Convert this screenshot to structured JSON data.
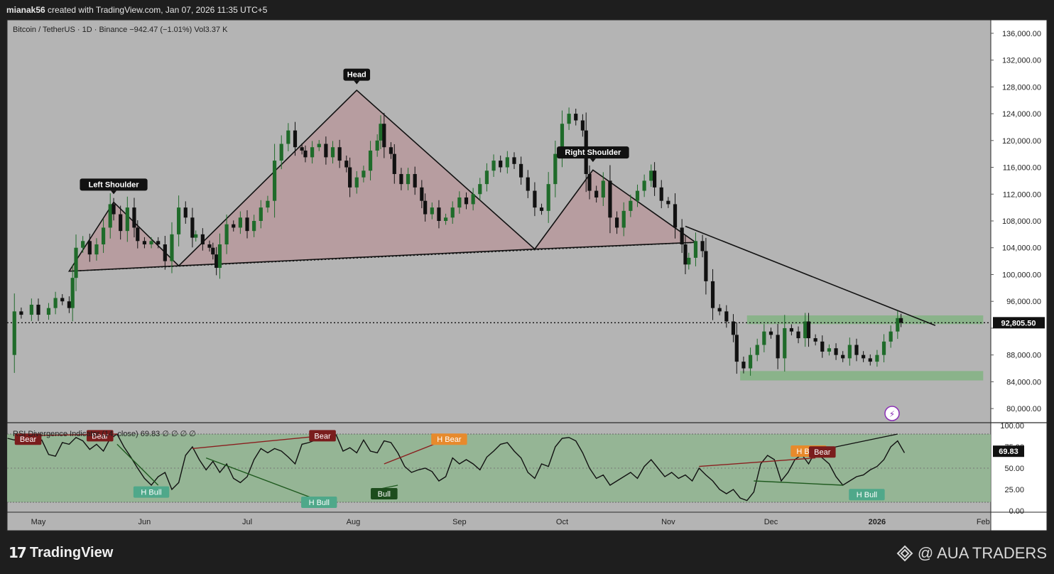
{
  "header": {
    "author": "mianak56",
    "credit": "created with TradingView.com, Jan 07, 2026 11:35 UTC+5"
  },
  "legend": {
    "symbol": "Bitcoin / TetherUS · 1D · Binance",
    "change": "−942.47 (−1.01%)",
    "volume": "Vol3.37 K",
    "rsi_title": "RSI Divergence Indicator (14, close)",
    "rsi_value": "69.83",
    "rsi_extra": "∅ ∅ ∅ ∅"
  },
  "footer": {
    "brand": "TradingView",
    "watermark": "@ AUA TRADERS"
  },
  "chart_data": {
    "type": "candlestick",
    "x_axis": {
      "labels": [
        "May",
        "Jun",
        "Jul",
        "Aug",
        "Sep",
        "Oct",
        "Nov",
        "Dec",
        "2026",
        "Feb"
      ],
      "label_days": [
        0,
        31,
        61,
        92,
        123,
        153,
        184,
        214,
        245,
        276
      ]
    },
    "y_axis": {
      "ticks": [
        80000,
        84000,
        88000,
        92000,
        96000,
        100000,
        104000,
        108000,
        112000,
        116000,
        120000,
        124000,
        128000,
        132000,
        136000
      ],
      "tick_labels": [
        "80,000.00",
        "84,000.00",
        "88,000.00",
        "",
        "96,000.00",
        "100,000.00",
        "104,000.00",
        "108,000.00",
        "112,000.00",
        "116,000.00",
        "120,000.00",
        "124,000.00",
        "128,000.00",
        "132,000.00",
        "136,000.00"
      ],
      "range": [
        78000,
        138000
      ]
    },
    "last_price": 92805.5,
    "last_price_label": "92,805.50",
    "price_path": [
      [
        -9,
        88000
      ],
      [
        -7,
        94500
      ],
      [
        -5,
        94000
      ],
      [
        -2,
        95500
      ],
      [
        0,
        94000
      ],
      [
        3,
        95000
      ],
      [
        5,
        96500
      ],
      [
        7,
        96000
      ],
      [
        9,
        95000
      ],
      [
        10,
        99500
      ],
      [
        11,
        104000
      ],
      [
        13,
        105000
      ],
      [
        15,
        103000
      ],
      [
        17,
        104500
      ],
      [
        19,
        107000
      ],
      [
        21,
        110500
      ],
      [
        22,
        109000
      ],
      [
        24,
        106500
      ],
      [
        26,
        110000
      ],
      [
        28,
        107000
      ],
      [
        29,
        105000
      ],
      [
        31,
        104500
      ],
      [
        33,
        105000
      ],
      [
        35,
        104500
      ],
      [
        37,
        102000
      ],
      [
        39,
        106000
      ],
      [
        41,
        110000
      ],
      [
        43,
        108500
      ],
      [
        45,
        105500
      ],
      [
        46,
        106000
      ],
      [
        48,
        104500
      ],
      [
        50,
        104000
      ],
      [
        51,
        103000
      ],
      [
        52,
        101000
      ],
      [
        53,
        104500
      ],
      [
        55,
        107500
      ],
      [
        57,
        107000
      ],
      [
        59,
        108500
      ],
      [
        61,
        106500
      ],
      [
        63,
        108000
      ],
      [
        65,
        110000
      ],
      [
        67,
        111000
      ],
      [
        69,
        117000
      ],
      [
        71,
        119500
      ],
      [
        73,
        121500
      ],
      [
        75,
        119000
      ],
      [
        77,
        118500
      ],
      [
        78,
        117500
      ],
      [
        80,
        119000
      ],
      [
        82,
        119500
      ],
      [
        84,
        117500
      ],
      [
        86,
        119000
      ],
      [
        88,
        117000
      ],
      [
        90,
        116000
      ],
      [
        91,
        113000
      ],
      [
        93,
        114500
      ],
      [
        95,
        115500
      ],
      [
        97,
        118500
      ],
      [
        99,
        120000
      ],
      [
        100,
        122500
      ],
      [
        101,
        119000
      ],
      [
        103,
        118000
      ],
      [
        104,
        115000
      ],
      [
        106,
        113500
      ],
      [
        108,
        115000
      ],
      [
        110,
        113000
      ],
      [
        112,
        111000
      ],
      [
        113,
        109000
      ],
      [
        115,
        110000
      ],
      [
        117,
        108000
      ],
      [
        119,
        108500
      ],
      [
        121,
        110000
      ],
      [
        123,
        111500
      ],
      [
        125,
        110500
      ],
      [
        127,
        112000
      ],
      [
        129,
        113500
      ],
      [
        131,
        115500
      ],
      [
        133,
        117000
      ],
      [
        135,
        116000
      ],
      [
        137,
        117500
      ],
      [
        139,
        116500
      ],
      [
        141,
        114500
      ],
      [
        143,
        112500
      ],
      [
        145,
        110000
      ],
      [
        147,
        109500
      ],
      [
        149,
        113500
      ],
      [
        151,
        118000
      ],
      [
        153,
        122500
      ],
      [
        155,
        124000
      ],
      [
        157,
        123000
      ],
      [
        159,
        121500
      ],
      [
        160,
        115000
      ],
      [
        161,
        112500
      ],
      [
        163,
        111500
      ],
      [
        165,
        114000
      ],
      [
        167,
        108500
      ],
      [
        169,
        107000
      ],
      [
        171,
        109500
      ],
      [
        173,
        111000
      ],
      [
        175,
        112500
      ],
      [
        177,
        114000
      ],
      [
        179,
        115500
      ],
      [
        180,
        113000
      ],
      [
        182,
        111000
      ],
      [
        184,
        110500
      ],
      [
        186,
        107000
      ],
      [
        188,
        104500
      ],
      [
        189,
        101500
      ],
      [
        190,
        102500
      ],
      [
        192,
        105000
      ],
      [
        194,
        103500
      ],
      [
        195,
        99000
      ],
      [
        197,
        95000
      ],
      [
        199,
        94500
      ],
      [
        201,
        93000
      ],
      [
        203,
        91000
      ],
      [
        204,
        87000
      ],
      [
        206,
        86000
      ],
      [
        208,
        88000
      ],
      [
        210,
        89500
      ],
      [
        212,
        91500
      ],
      [
        214,
        91000
      ],
      [
        216,
        87500
      ],
      [
        218,
        92000
      ],
      [
        220,
        91500
      ],
      [
        222,
        90500
      ],
      [
        224,
        93000
      ],
      [
        225,
        90500
      ],
      [
        227,
        90000
      ],
      [
        229,
        88500
      ],
      [
        231,
        89000
      ],
      [
        233,
        88000
      ],
      [
        235,
        87500
      ],
      [
        237,
        89500
      ],
      [
        239,
        88000
      ],
      [
        241,
        87500
      ],
      [
        243,
        87000
      ],
      [
        245,
        88000
      ],
      [
        247,
        90000
      ],
      [
        249,
        91500
      ],
      [
        251,
        93500
      ],
      [
        252,
        92800
      ]
    ],
    "patterns": {
      "labels": {
        "left_shoulder": "Left Shoulder",
        "head": "Head",
        "right_shoulder": "Right Shoulder"
      },
      "left_shoulder_triangle": [
        [
          9,
          100500
        ],
        [
          22,
          110800
        ],
        [
          41,
          101300
        ]
      ],
      "head_triangle": [
        [
          41,
          101300
        ],
        [
          93,
          127500
        ],
        [
          145,
          103800
        ]
      ],
      "right_shoulder_triangle": [
        [
          145,
          103800
        ],
        [
          162,
          115600
        ],
        [
          192,
          104800
        ]
      ],
      "neckline": [
        [
          9,
          100500
        ],
        [
          192,
          104800
        ]
      ],
      "downtrend_line": [
        [
          189,
          107200
        ],
        [
          262,
          92400
        ]
      ],
      "support_level": 92805.5
    },
    "zones": [
      {
        "from_day": 207,
        "to_day": 276,
        "low": 92600,
        "high": 93900
      },
      {
        "from_day": 205,
        "to_day": 276,
        "low": 84200,
        "high": 85600
      }
    ],
    "rsi": {
      "ticks": [
        0,
        25,
        50,
        75,
        100
      ],
      "tick_labels": [
        "0.00",
        "25.00",
        "50.00",
        "75.00",
        "100.00"
      ],
      "range": [
        0,
        100
      ],
      "band": [
        10,
        90
      ],
      "current": 69.83,
      "path": [
        [
          -9,
          85
        ],
        [
          -7,
          83
        ],
        [
          -5,
          88
        ],
        [
          -3,
          80
        ],
        [
          -1,
          78
        ],
        [
          1,
          83
        ],
        [
          3,
          66
        ],
        [
          5,
          64
        ],
        [
          7,
          80
        ],
        [
          9,
          78
        ],
        [
          11,
          86
        ],
        [
          13,
          82
        ],
        [
          15,
          72
        ],
        [
          17,
          78
        ],
        [
          19,
          70
        ],
        [
          21,
          85
        ],
        [
          23,
          90
        ],
        [
          25,
          75
        ],
        [
          27,
          63
        ],
        [
          29,
          50
        ],
        [
          31,
          38
        ],
        [
          33,
          30
        ],
        [
          35,
          40
        ],
        [
          37,
          45
        ],
        [
          39,
          25
        ],
        [
          41,
          33
        ],
        [
          43,
          65
        ],
        [
          45,
          75
        ],
        [
          47,
          60
        ],
        [
          49,
          48
        ],
        [
          51,
          58
        ],
        [
          53,
          45
        ],
        [
          55,
          55
        ],
        [
          57,
          38
        ],
        [
          59,
          33
        ],
        [
          61,
          40
        ],
        [
          63,
          60
        ],
        [
          65,
          73
        ],
        [
          67,
          68
        ],
        [
          69,
          73
        ],
        [
          71,
          70
        ],
        [
          73,
          63
        ],
        [
          75,
          55
        ],
        [
          77,
          78
        ],
        [
          79,
          80
        ],
        [
          81,
          83
        ],
        [
          83,
          88
        ],
        [
          85,
          86
        ],
        [
          87,
          89
        ],
        [
          89,
          70
        ],
        [
          91,
          74
        ],
        [
          93,
          68
        ],
        [
          95,
          83
        ],
        [
          97,
          70
        ],
        [
          99,
          68
        ],
        [
          101,
          82
        ],
        [
          103,
          80
        ],
        [
          105,
          68
        ],
        [
          107,
          52
        ],
        [
          109,
          45
        ],
        [
          111,
          48
        ],
        [
          113,
          50
        ],
        [
          115,
          46
        ],
        [
          117,
          35
        ],
        [
          119,
          40
        ],
        [
          121,
          62
        ],
        [
          123,
          55
        ],
        [
          125,
          60
        ],
        [
          127,
          55
        ],
        [
          129,
          48
        ],
        [
          131,
          63
        ],
        [
          133,
          70
        ],
        [
          135,
          78
        ],
        [
          137,
          80
        ],
        [
          139,
          70
        ],
        [
          141,
          62
        ],
        [
          143,
          45
        ],
        [
          145,
          38
        ],
        [
          147,
          55
        ],
        [
          149,
          52
        ],
        [
          151,
          75
        ],
        [
          153,
          85
        ],
        [
          155,
          86
        ],
        [
          157,
          82
        ],
        [
          159,
          68
        ],
        [
          161,
          50
        ],
        [
          163,
          38
        ],
        [
          165,
          42
        ],
        [
          167,
          30
        ],
        [
          169,
          35
        ],
        [
          171,
          40
        ],
        [
          173,
          45
        ],
        [
          175,
          38
        ],
        [
          177,
          52
        ],
        [
          179,
          60
        ],
        [
          181,
          50
        ],
        [
          183,
          40
        ],
        [
          185,
          45
        ],
        [
          187,
          38
        ],
        [
          189,
          42
        ],
        [
          191,
          35
        ],
        [
          193,
          50
        ],
        [
          195,
          42
        ],
        [
          197,
          35
        ],
        [
          199,
          25
        ],
        [
          201,
          20
        ],
        [
          203,
          25
        ],
        [
          205,
          15
        ],
        [
          207,
          12
        ],
        [
          209,
          22
        ],
        [
          211,
          55
        ],
        [
          213,
          65
        ],
        [
          215,
          60
        ],
        [
          217,
          35
        ],
        [
          219,
          45
        ],
        [
          221,
          60
        ],
        [
          223,
          66
        ],
        [
          225,
          55
        ],
        [
          227,
          70
        ],
        [
          229,
          62
        ],
        [
          231,
          55
        ],
        [
          233,
          40
        ],
        [
          235,
          30
        ],
        [
          237,
          35
        ],
        [
          239,
          40
        ],
        [
          241,
          42
        ],
        [
          243,
          48
        ],
        [
          245,
          52
        ],
        [
          247,
          60
        ],
        [
          249,
          75
        ],
        [
          251,
          82
        ],
        [
          253,
          68
        ]
      ],
      "signals": [
        {
          "label": "Bear",
          "day": -3,
          "value": 84,
          "kind": "bear"
        },
        {
          "label": "Bear",
          "day": 18,
          "value": 88,
          "kind": "bear"
        },
        {
          "label": "H Bull",
          "day": 33,
          "value": 22,
          "kind": "hbull"
        },
        {
          "label": "Bear",
          "day": 83,
          "value": 88,
          "kind": "bear"
        },
        {
          "label": "H Bull",
          "day": 82,
          "value": 10,
          "kind": "hbull"
        },
        {
          "label": "H Bear",
          "day": 120,
          "value": 84,
          "kind": "hbear"
        },
        {
          "label": "Bull",
          "day": 101,
          "value": 20,
          "kind": "bull"
        },
        {
          "label": "H Bear",
          "day": 225,
          "value": 70,
          "kind": "hbear"
        },
        {
          "label": "Bear",
          "day": 229,
          "value": 69,
          "kind": "bear"
        },
        {
          "label": "H Bull",
          "day": 242,
          "value": 19,
          "kind": "hbull"
        }
      ]
    }
  }
}
